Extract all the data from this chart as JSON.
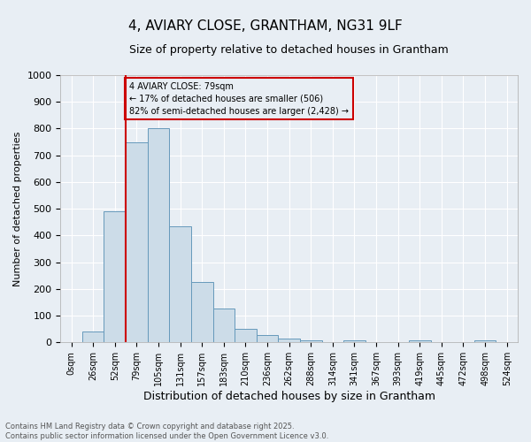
{
  "title": "4, AVIARY CLOSE, GRANTHAM, NG31 9LF",
  "subtitle": "Size of property relative to detached houses in Grantham",
  "xlabel": "Distribution of detached houses by size in Grantham",
  "ylabel": "Number of detached properties",
  "bin_labels": [
    "0sqm",
    "26sqm",
    "52sqm",
    "79sqm",
    "105sqm",
    "131sqm",
    "157sqm",
    "183sqm",
    "210sqm",
    "236sqm",
    "262sqm",
    "288sqm",
    "314sqm",
    "341sqm",
    "367sqm",
    "393sqm",
    "419sqm",
    "445sqm",
    "472sqm",
    "498sqm",
    "524sqm"
  ],
  "bar_values": [
    0,
    42,
    490,
    750,
    800,
    435,
    225,
    128,
    50,
    28,
    15,
    8,
    0,
    8,
    0,
    0,
    7,
    0,
    0,
    7,
    0
  ],
  "bar_color": "#ccdce8",
  "bar_edge_color": "#6699bb",
  "vline_x": 3,
  "vline_color": "#cc0000",
  "annotation_text": "4 AVIARY CLOSE: 79sqm\n← 17% of detached houses are smaller (506)\n82% of semi-detached houses are larger (2,428) →",
  "annotation_box_color": "#cc0000",
  "ylim": [
    0,
    1000
  ],
  "yticks": [
    0,
    100,
    200,
    300,
    400,
    500,
    600,
    700,
    800,
    900,
    1000
  ],
  "footnote": "Contains HM Land Registry data © Crown copyright and database right 2025.\nContains public sector information licensed under the Open Government Licence v3.0.",
  "bg_color": "#e8eef4",
  "grid_color": "#ffffff",
  "title_fontsize": 11,
  "subtitle_fontsize": 9,
  "xlabel_fontsize": 9,
  "ylabel_fontsize": 8,
  "tick_fontsize": 8,
  "xtick_fontsize": 7,
  "annot_fontsize": 7,
  "footnote_fontsize": 6
}
